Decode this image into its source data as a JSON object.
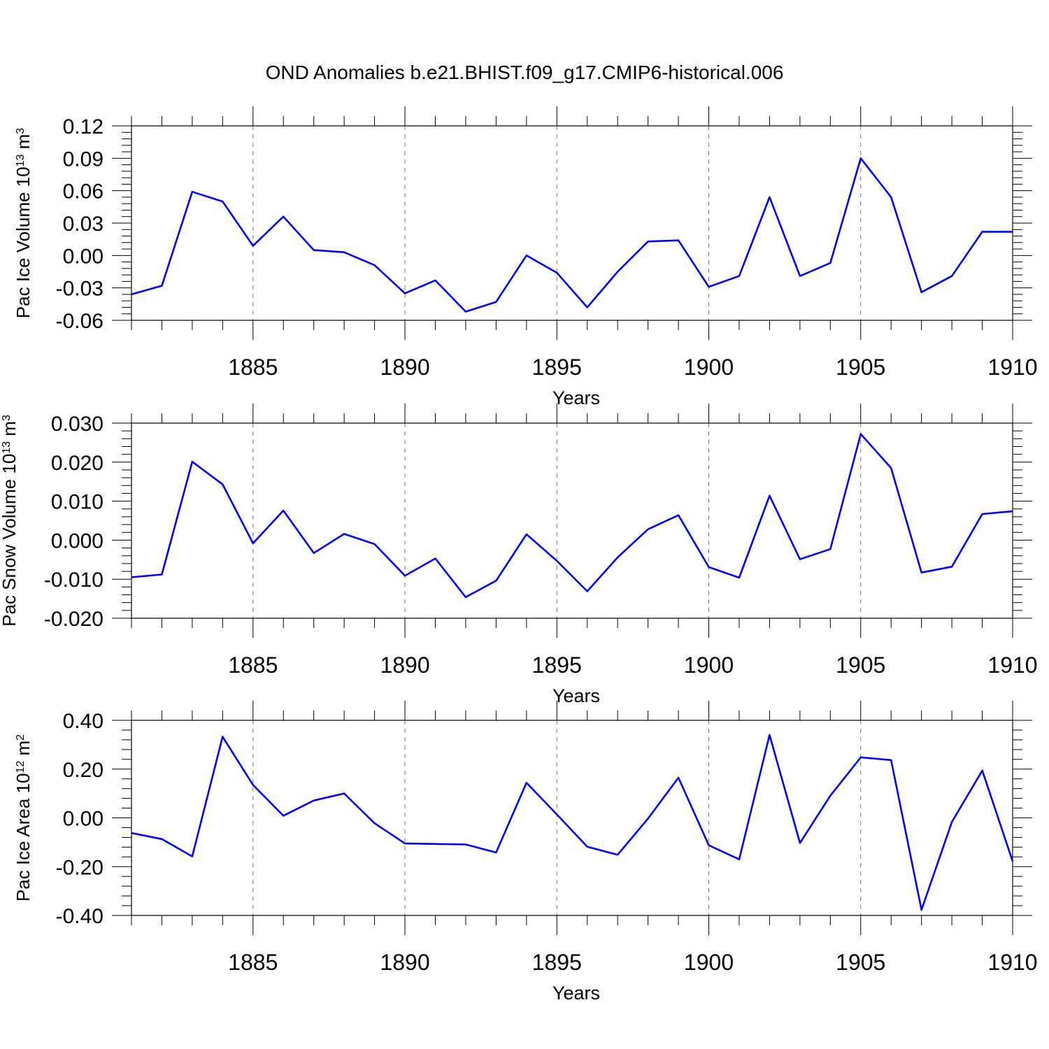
{
  "title": "OND Anomalies b.e21.BHIST.f09_g17.CMIP6-historical.006",
  "chart_data": [
    {
      "type": "line",
      "title": "OND Anomalies b.e21.BHIST.f09_g17.CMIP6-historical.006",
      "xlabel": "Years",
      "ylabel": "Pac Ice Volume 10",
      "ylabel_sup": "13",
      "ylabel_unit": " m",
      "ylabel_unit_sup": "3",
      "xlim": [
        1881,
        1910
      ],
      "ylim": [
        -0.06,
        0.12
      ],
      "yticks": [
        -0.06,
        -0.03,
        0.0,
        0.03,
        0.06,
        0.09,
        0.12
      ],
      "ytick_labels": [
        "-0.06",
        "-0.03",
        "0.00",
        "0.03",
        "0.06",
        "0.09",
        "0.12"
      ],
      "xticks": [
        1885,
        1890,
        1895,
        1900,
        1905,
        1910
      ],
      "xtick_labels": [
        "1885",
        "1890",
        "1895",
        "1900",
        "1905",
        "1910"
      ],
      "grid": "vertical dashed at major x ticks",
      "line_color": "#0000ff",
      "x": [
        1881,
        1882,
        1883,
        1884,
        1885,
        1886,
        1887,
        1888,
        1889,
        1890,
        1891,
        1892,
        1893,
        1894,
        1895,
        1896,
        1897,
        1898,
        1899,
        1900,
        1901,
        1902,
        1903,
        1904,
        1905,
        1906,
        1907,
        1908,
        1909,
        1910
      ],
      "values": [
        -0.036,
        -0.028,
        0.059,
        0.05,
        0.009,
        0.036,
        0.005,
        0.003,
        -0.009,
        -0.035,
        -0.023,
        -0.052,
        -0.043,
        0.0,
        -0.016,
        -0.048,
        -0.015,
        0.013,
        0.014,
        -0.029,
        -0.019,
        0.054,
        -0.019,
        -0.007,
        0.09,
        0.054,
        -0.034,
        -0.019,
        0.022,
        0.022
      ]
    },
    {
      "type": "line",
      "xlabel": "Years",
      "ylabel": "Pac Snow Volume 10",
      "ylabel_sup": "13",
      "ylabel_unit": " m",
      "ylabel_unit_sup": "3",
      "xlim": [
        1881,
        1910
      ],
      "ylim": [
        -0.02,
        0.03
      ],
      "yticks": [
        -0.02,
        -0.01,
        0.0,
        0.01,
        0.02,
        0.03
      ],
      "ytick_labels": [
        "-0.020",
        "-0.010",
        "0.000",
        "0.010",
        "0.020",
        "0.030"
      ],
      "xticks": [
        1885,
        1890,
        1895,
        1900,
        1905,
        1910
      ],
      "xtick_labels": [
        "1885",
        "1890",
        "1895",
        "1900",
        "1905",
        "1910"
      ],
      "grid": "vertical dashed at major x ticks",
      "line_color": "#0000ff",
      "x": [
        1881,
        1882,
        1883,
        1884,
        1885,
        1886,
        1887,
        1888,
        1889,
        1890,
        1891,
        1892,
        1893,
        1894,
        1895,
        1896,
        1897,
        1898,
        1899,
        1900,
        1901,
        1902,
        1903,
        1904,
        1905,
        1906,
        1907,
        1908,
        1909,
        1910
      ],
      "values": [
        -0.0095,
        -0.0088,
        0.0201,
        0.0143,
        -0.0008,
        0.0076,
        -0.0033,
        0.0016,
        -0.001,
        -0.0091,
        -0.0047,
        -0.0146,
        -0.0104,
        0.0015,
        -0.0053,
        -0.0131,
        -0.0044,
        0.0028,
        0.0064,
        -0.0069,
        -0.0096,
        0.0114,
        -0.0049,
        -0.0023,
        0.0272,
        0.0185,
        -0.0083,
        -0.0068,
        0.0067,
        0.0074
      ]
    },
    {
      "type": "line",
      "xlabel": "Years",
      "ylabel": "Pac Ice Area 10",
      "ylabel_sup": "12",
      "ylabel_unit": " m",
      "ylabel_unit_sup": "2",
      "xlim": [
        1881,
        1910
      ],
      "ylim": [
        -0.4,
        0.4
      ],
      "yticks": [
        -0.4,
        -0.2,
        0.0,
        0.2,
        0.4
      ],
      "ytick_labels": [
        "-0.40",
        "-0.20",
        "0.00",
        "0.20",
        "0.40"
      ],
      "xticks": [
        1885,
        1890,
        1895,
        1900,
        1905,
        1910
      ],
      "xtick_labels": [
        "1885",
        "1890",
        "1895",
        "1900",
        "1905",
        "1910"
      ],
      "grid": "vertical dashed at major x ticks",
      "line_color": "#0000ff",
      "x": [
        1881,
        1882,
        1883,
        1884,
        1885,
        1886,
        1887,
        1888,
        1889,
        1890,
        1891,
        1892,
        1893,
        1894,
        1895,
        1896,
        1897,
        1898,
        1899,
        1900,
        1901,
        1902,
        1903,
        1904,
        1905,
        1906,
        1907,
        1908,
        1909,
        1910
      ],
      "values": [
        -0.062,
        -0.087,
        -0.158,
        0.333,
        0.135,
        0.009,
        0.071,
        0.1,
        -0.022,
        -0.105,
        -0.107,
        -0.109,
        -0.142,
        0.144,
        0.014,
        -0.118,
        -0.151,
        -0.003,
        0.165,
        -0.112,
        -0.17,
        0.34,
        -0.103,
        0.091,
        0.248,
        0.237,
        -0.377,
        -0.017,
        0.194,
        -0.178
      ]
    }
  ]
}
